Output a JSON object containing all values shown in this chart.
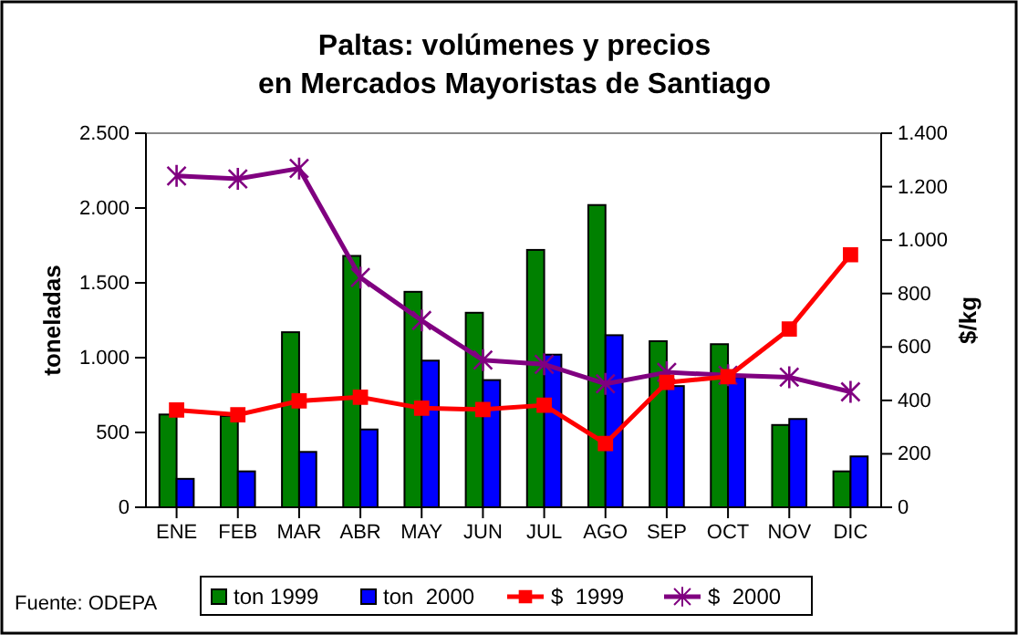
{
  "chart_data": {
    "type": "bar",
    "title": "Paltas: volúmenes y precios\nen Mercados Mayoristas de Santiago",
    "ylabel": "toneladas",
    "y2label": "$/kg",
    "categories": [
      "ENE",
      "FEB",
      "MAR",
      "ABR",
      "MAY",
      "JUN",
      "JUL",
      "AGO",
      "SEP",
      "OCT",
      "NOV",
      "DIC"
    ],
    "series": [
      {
        "name": "ton 1999",
        "color": "#008000",
        "values": [
          620,
          610,
          1170,
          1680,
          1440,
          1300,
          1720,
          2020,
          1110,
          1090,
          550,
          240
        ]
      },
      {
        "name": "ton  2000",
        "color": "#0000ff",
        "values": [
          190,
          240,
          370,
          520,
          980,
          850,
          1020,
          1150,
          810,
          870,
          590,
          340
        ]
      },
      {
        "name": "$  1999",
        "type": "line",
        "axis": "y2",
        "color": "#ff0000",
        "marker": "square",
        "values": [
          364,
          346,
          398,
          412,
          371,
          366,
          382,
          239,
          467,
          489,
          667,
          945
        ]
      },
      {
        "name": "$  2000",
        "type": "line",
        "axis": "y2",
        "color": "#800080",
        "marker": "cross",
        "values": [
          1240,
          1229,
          1268,
          860,
          699,
          551,
          535,
          462,
          505,
          494,
          487,
          432
        ]
      }
    ],
    "ylim": [
      0,
      2500
    ],
    "yticks": [
      {
        "value": 0,
        "label": "0"
      },
      {
        "value": 500,
        "label": "500"
      },
      {
        "value": 1000,
        "label": "1.000"
      },
      {
        "value": 1500,
        "label": "1.500"
      },
      {
        "value": 2000,
        "label": "2.000"
      },
      {
        "value": 2500,
        "label": "2.500"
      }
    ],
    "y2lim": [
      0,
      1400
    ],
    "y2ticks": [
      {
        "value": 0,
        "label": "0"
      },
      {
        "value": 200,
        "label": "200"
      },
      {
        "value": 400,
        "label": "400"
      },
      {
        "value": 600,
        "label": "600"
      },
      {
        "value": 800,
        "label": "800"
      },
      {
        "value": 1000,
        "label": "1.000"
      },
      {
        "value": 1200,
        "label": "1.200"
      },
      {
        "value": 1400,
        "label": "1.400"
      }
    ],
    "legend": "bottom",
    "grid": false,
    "annotations": [
      "Fuente: ODEPA"
    ]
  }
}
